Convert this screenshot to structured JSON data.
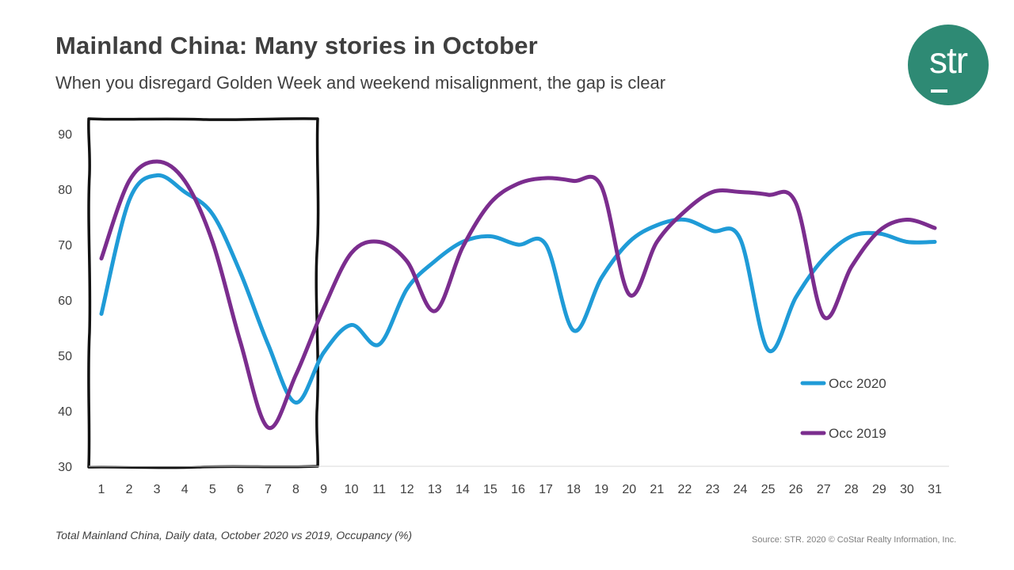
{
  "header": {
    "title": "Mainland China: Many stories in October",
    "subtitle": "When you disregard Golden Week and weekend misalignment, the gap is clear"
  },
  "logo": {
    "text": "str"
  },
  "footer": {
    "note": "Total Mainland China, Daily data, October 2020 vs 2019, Occupancy (%)",
    "source": "Source: STR. 2020 © CoStar Realty Information, Inc."
  },
  "chart_data": {
    "type": "line",
    "title": "",
    "xlabel": "",
    "ylabel": "",
    "x": [
      1,
      2,
      3,
      4,
      5,
      6,
      7,
      8,
      9,
      10,
      11,
      12,
      13,
      14,
      15,
      16,
      17,
      18,
      19,
      20,
      21,
      22,
      23,
      24,
      25,
      26,
      27,
      28,
      29,
      30,
      31
    ],
    "ylim": [
      30,
      90
    ],
    "yticks": [
      30,
      40,
      50,
      60,
      70,
      80,
      90
    ],
    "grid": false,
    "series": [
      {
        "name": "Occ 2020",
        "color": "#1f9bd7",
        "values": [
          57.5,
          78,
          82.5,
          79.5,
          75.5,
          65,
          52,
          41.5,
          50.5,
          55.5,
          52,
          62,
          67,
          70.5,
          71.5,
          70,
          70,
          54.5,
          64,
          70.5,
          73.5,
          74.5,
          72.5,
          71,
          51,
          60.5,
          67.5,
          71.5,
          72,
          70.5,
          70.5
        ]
      },
      {
        "name": "Occ 2019",
        "color": "#7b2d8e",
        "values": [
          67.5,
          81.5,
          85,
          81.5,
          70.5,
          52.5,
          37,
          46.5,
          58.5,
          68.5,
          70.5,
          67,
          58,
          69.5,
          77.5,
          81,
          82,
          81.5,
          80.5,
          61,
          70.5,
          76,
          79.5,
          79.5,
          79,
          77.5,
          57,
          66,
          72.5,
          74.5,
          73
        ]
      }
    ],
    "legend_position": "right",
    "annotation": "hand-drawn box highlighting days 1-8 (Golden Week)"
  }
}
